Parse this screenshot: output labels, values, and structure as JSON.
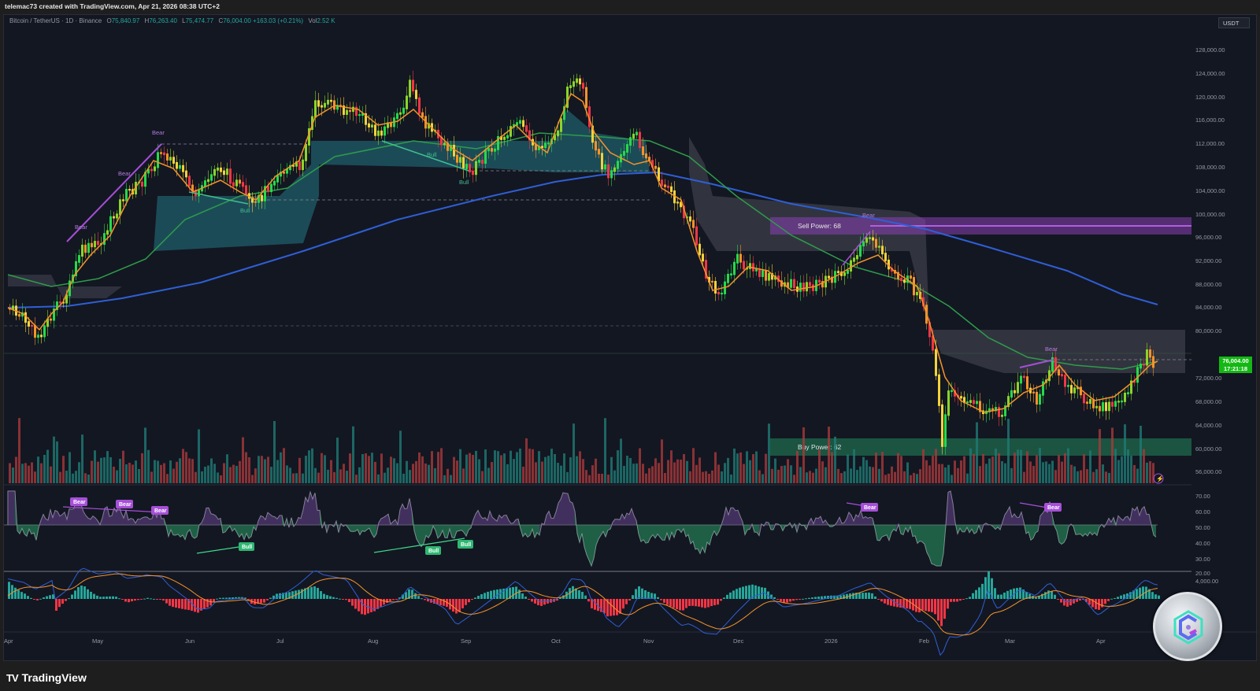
{
  "header": {
    "created_by": "telemac73 created with TradingView.com, Apr 21, 2026 08:38 UTC+2"
  },
  "legend": {
    "symbol": "Bitcoin / TetherUS · 1D · Binance",
    "open_label": "O",
    "open": "75,840.97",
    "high_label": "H",
    "high": "76,263.40",
    "low_label": "L",
    "low": "75,474.77",
    "close_label": "C",
    "close": "76,004.00",
    "change": "+163.03 (+0.21%)",
    "vol_label": "Vol",
    "vol": "2.52 K"
  },
  "currency_button": "USDT",
  "price_tag": {
    "price": "76,004.00",
    "countdown": "17:21:18",
    "color": "#14b814"
  },
  "annotations": {
    "sell_power": "Sell Power: 68",
    "buy_power": "Buy Power: 62",
    "bear": "Bear",
    "bull": "Bull"
  },
  "footer": {
    "brand": "TradingView",
    "brand_mark": "TV"
  },
  "colors": {
    "background": "#131722",
    "bull_candle": "#26d94a",
    "bear_candle": "#f23645",
    "ema_fast": "#f5932a",
    "ema_mid": "#2e9c4a",
    "ema_slow": "#2f5fd6",
    "cloud_teal": "#1f5561",
    "cloud_gray": "#4a4c57",
    "sell_zone": "#8a3fb5",
    "buy_zone": "#1d5c45",
    "divergence": "#a64fd8"
  },
  "chart_data": [
    {
      "type": "candlestick",
      "title": "Bitcoin / TetherUS · 1D · Binance",
      "ylabel": "USDT",
      "ylim": [
        54000,
        130000
      ],
      "y_ticks": [
        "128,000.00",
        "124,000.00",
        "120,000.00",
        "116,000.00",
        "112,000.00",
        "108,000.00",
        "104,000.00",
        "100,000.00",
        "96,000.00",
        "92,000.00",
        "88,000.00",
        "84,000.00",
        "80,000.00",
        "72,000.00",
        "68,000.00",
        "64,000.00",
        "60,000.00",
        "56,000.00"
      ],
      "x_ticks": [
        "Apr",
        "May",
        "Jun",
        "Jul",
        "Aug",
        "Sep",
        "Oct",
        "Nov",
        "Dec",
        "2026",
        "Feb",
        "Mar",
        "Apr"
      ],
      "approx_monthly_close": {
        "x": [
          "Apr",
          "May",
          "Jun",
          "Jul",
          "Aug",
          "Sep",
          "Oct",
          "Nov",
          "Dec",
          "2026",
          "Feb",
          "Mar",
          "Apr"
        ],
        "values": [
          84000,
          95000,
          105000,
          107000,
          116000,
          110000,
          114000,
          108000,
          90000,
          88000,
          76000,
          67000,
          76004
        ]
      },
      "key_levels": {
        "all_time_high": 126000,
        "feb_low": 60000,
        "last_price": 76004
      },
      "zones": [
        {
          "label": "Sell Power: 68",
          "from": 96500,
          "to": 99500
        },
        {
          "label": "Buy Power: 62",
          "from": 58500,
          "to": 61500
        }
      ],
      "series": [
        {
          "name": "EMA fast (orange)"
        },
        {
          "name": "EMA mid (green)"
        },
        {
          "name": "EMA slow (blue)",
          "values_approx": [
            84000,
            88000,
            96000,
            101000,
            106000,
            107000,
            106000,
            99000,
            96000,
            92000,
            88000,
            84000
          ]
        }
      ]
    },
    {
      "type": "bar",
      "title": "Volume",
      "colors": [
        "#26a69a",
        "#ef5350"
      ]
    },
    {
      "type": "area",
      "title": "RSI",
      "ylim": [
        20,
        70
      ],
      "y_ticks": [
        "70.00",
        "60.00",
        "50.00",
        "40.00",
        "30.00",
        "20.00"
      ],
      "midline": 50,
      "labels": [
        "Bear",
        "Bear",
        "Bear",
        "Bull",
        "Bull",
        "Bull",
        "Bear",
        "Bear"
      ]
    },
    {
      "type": "line",
      "title": "MACD",
      "y_ticks": [
        "4,000.00"
      ],
      "series": [
        {
          "name": "MACD",
          "color": "#2f5fd6"
        },
        {
          "name": "Signal",
          "color": "#f5932a"
        },
        {
          "name": "Histogram"
        }
      ]
    }
  ]
}
